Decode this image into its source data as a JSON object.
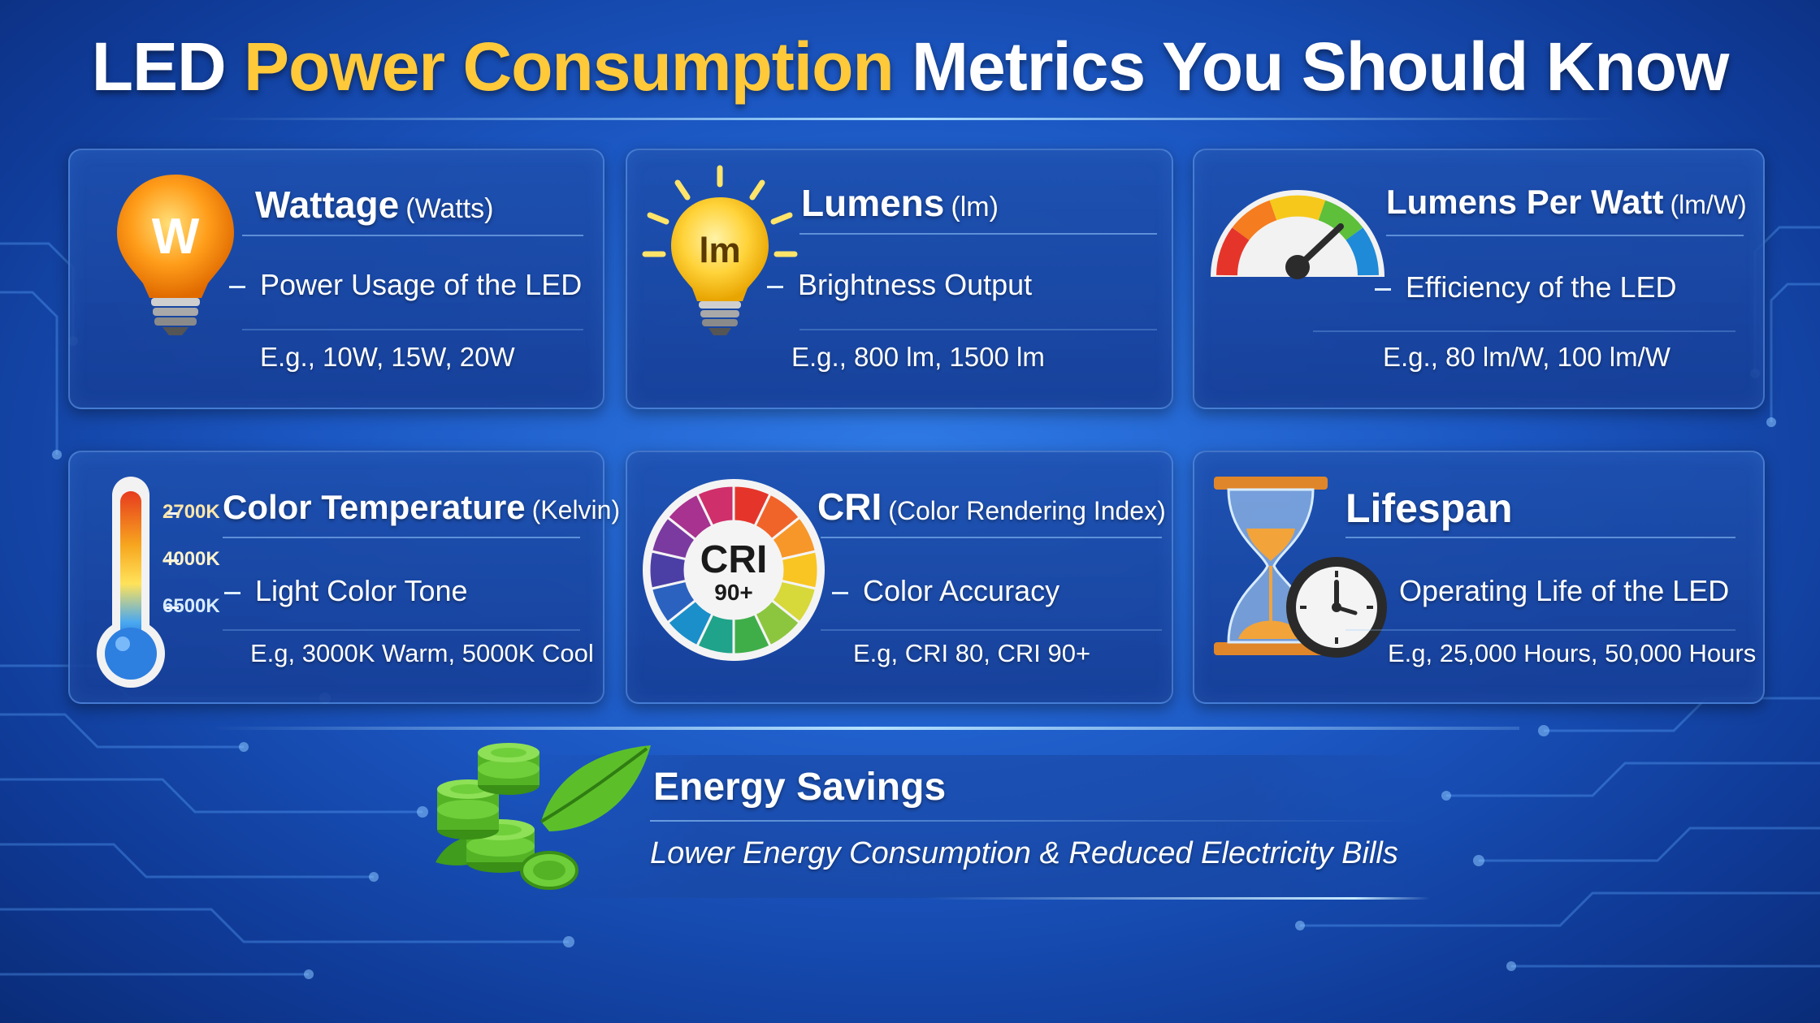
{
  "title": {
    "part1": "LED ",
    "part2": "Power Consumption",
    "part3": " Metrics You Should Know"
  },
  "cards": {
    "wattage": {
      "title": "Wattage",
      "unit": "(Watts)",
      "description": "Power Usage of the LED",
      "example": "E.g., 10W, 15W, 20W",
      "icon_letter": "W"
    },
    "lumens": {
      "title": "Lumens",
      "unit": "(lm)",
      "description": "Brightness Output",
      "example": "E.g., 800 lm, 1500 lm",
      "icon_letter": "lm"
    },
    "lumens_per_watt": {
      "title": "Lumens Per Watt",
      "unit": "(lm/W)",
      "description": "Efficiency of the LED",
      "example": "E.g., 80 lm/W, 100 lm/W"
    },
    "color_temperature": {
      "title": "Color Temperature",
      "unit": "(Kelvin)",
      "description": "Light Color Tone",
      "example": "E.g, 3000K Warm, 5000K Cool",
      "scale": [
        "2700K",
        "4000K",
        "6500K"
      ]
    },
    "cri": {
      "title": "CRI",
      "unit": "(Color Rendering Index)",
      "description": "Color Accuracy",
      "example": "E.g, CRI 80, CRI 90+",
      "badge_main": "CRI",
      "badge_sub": "90+"
    },
    "lifespan": {
      "title": "Lifespan",
      "description": "Operating Life of the LED",
      "example": "E.g, 25,000 Hours, 50,000 Hours"
    }
  },
  "savings": {
    "title": "Energy Savings",
    "description": "Lower Energy Consumption & Reduced Electricity Bills"
  },
  "colors": {
    "accent_yellow": "#ffc93a",
    "background_blue": "#1c58c4"
  },
  "icons": [
    "lightbulb-icon",
    "gauge-icon",
    "thermometer-icon",
    "color-wheel-icon",
    "hourglass-icon",
    "clock-icon",
    "coins-leaf-icon"
  ]
}
